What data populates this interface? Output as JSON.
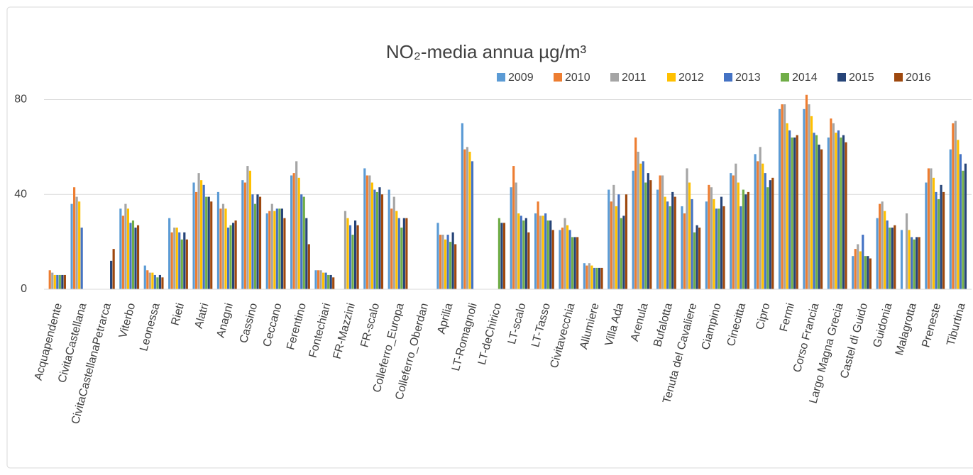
{
  "chart_data": {
    "type": "bar",
    "title": "NO₂-media annua µg/m³",
    "categories": [
      "Acquapendente",
      "CivitaCastellana",
      "CivitaCastellanaPetrarca",
      "Viterbo",
      "Leonessa",
      "Rieti",
      "Alatri",
      "Anagni",
      "Cassino",
      "Ceccano",
      "Ferentino",
      "Fontechiari",
      "FR-Mazzini",
      "FR-scalo",
      "Colleferro_Europa",
      "Colleferro_Oberdan",
      "Aprilia",
      "LT-Romagnoli",
      "LT-deChirico",
      "LT-scalo",
      "LT-Tasso",
      "Civitavecchia",
      "Allumiere",
      "Villa Ada",
      "Arenula",
      "Bufalotta",
      "Tenuta del Cavaliere",
      "Ciampino",
      "Cinecitta",
      "Cipro",
      "Fermi",
      "Corso Francia",
      "Largo Magna Grecia",
      "Castel di Guido",
      "Guidonia",
      "Malagrotta",
      "Preneste",
      "Tiburtina"
    ],
    "series": [
      {
        "name": "2009",
        "color": "#5b9bd5",
        "values": [
          null,
          36,
          null,
          34,
          10,
          30,
          45,
          41,
          46,
          32,
          48,
          8,
          null,
          51,
          42,
          null,
          28,
          70,
          null,
          43,
          32,
          25,
          11,
          42,
          50,
          42,
          35,
          37,
          49,
          57,
          76,
          76,
          64,
          14,
          30,
          25,
          45,
          59
        ]
      },
      {
        "name": "2010",
        "color": "#ed7d31",
        "values": [
          8,
          43,
          null,
          31,
          8,
          24,
          41,
          34,
          45,
          33,
          49,
          8,
          null,
          48,
          34,
          null,
          23,
          59,
          null,
          52,
          37,
          26,
          10,
          37,
          64,
          48,
          32,
          44,
          48,
          54,
          78,
          82,
          72,
          17,
          36,
          null,
          51,
          70
        ]
      },
      {
        "name": "2011",
        "color": "#a5a5a5",
        "values": [
          7,
          39,
          null,
          36,
          7,
          26,
          49,
          36,
          52,
          36,
          54,
          8,
          33,
          48,
          39,
          null,
          23,
          60,
          null,
          45,
          31,
          30,
          11,
          44,
          58,
          48,
          51,
          43,
          53,
          60,
          78,
          78,
          70,
          19,
          37,
          32,
          51,
          71
        ]
      },
      {
        "name": "2012",
        "color": "#ffc000",
        "values": [
          6,
          37,
          null,
          34,
          7,
          26,
          46,
          34,
          50,
          33,
          47,
          7,
          30,
          45,
          33,
          null,
          21,
          58,
          null,
          32,
          31,
          27,
          10,
          35,
          53,
          39,
          45,
          38,
          45,
          53,
          70,
          73,
          66,
          16,
          33,
          25,
          47,
          63
        ]
      },
      {
        "name": "2013",
        "color": "#4472c4",
        "values": [
          6,
          26,
          null,
          28,
          6,
          24,
          44,
          26,
          40,
          34,
          40,
          7,
          27,
          42,
          30,
          null,
          23,
          54,
          null,
          31,
          32,
          25,
          9,
          40,
          54,
          37,
          38,
          34,
          35,
          49,
          67,
          66,
          67,
          23,
          29,
          22,
          41,
          57
        ]
      },
      {
        "name": "2014",
        "color": "#70ad47",
        "values": [
          6,
          null,
          null,
          29,
          5,
          21,
          39,
          27,
          36,
          34,
          39,
          6,
          23,
          41,
          26,
          null,
          20,
          null,
          30,
          29,
          29,
          22,
          9,
          30,
          45,
          35,
          24,
          34,
          42,
          43,
          64,
          65,
          64,
          14,
          26,
          21,
          38,
          50
        ]
      },
      {
        "name": "2015",
        "color": "#264478",
        "values": [
          6,
          null,
          12,
          26,
          6,
          24,
          39,
          28,
          40,
          34,
          30,
          6,
          29,
          43,
          30,
          null,
          24,
          null,
          28,
          30,
          29,
          22,
          9,
          31,
          49,
          41,
          27,
          39,
          40,
          46,
          64,
          61,
          65,
          14,
          26,
          22,
          44,
          53
        ]
      },
      {
        "name": "2016",
        "color": "#9e480e",
        "values": [
          6,
          null,
          17,
          27,
          5,
          21,
          37,
          29,
          39,
          30,
          19,
          5,
          27,
          40,
          30,
          null,
          19,
          null,
          28,
          24,
          25,
          22,
          9,
          40,
          46,
          39,
          26,
          35,
          41,
          47,
          65,
          59,
          62,
          13,
          27,
          22,
          41,
          null
        ]
      }
    ],
    "ylim": [
      0,
      90
    ],
    "yticks": [
      0,
      40,
      80
    ],
    "grid": true,
    "legend": "top-right"
  }
}
